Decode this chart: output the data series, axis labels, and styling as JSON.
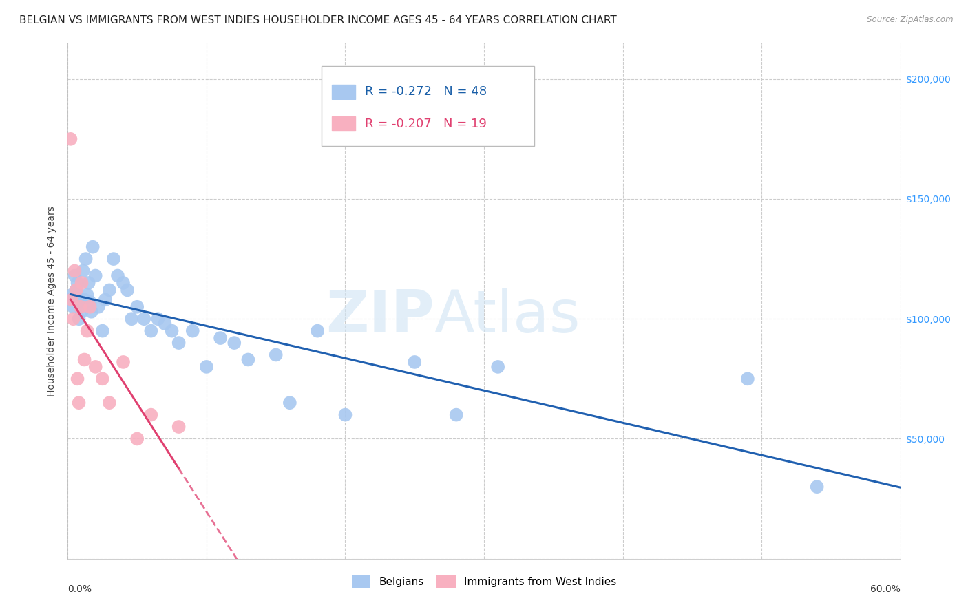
{
  "title": "BELGIAN VS IMMIGRANTS FROM WEST INDIES HOUSEHOLDER INCOME AGES 45 - 64 YEARS CORRELATION CHART",
  "source": "Source: ZipAtlas.com",
  "ylabel": "Householder Income Ages 45 - 64 years",
  "yticks": [
    0,
    50000,
    100000,
    150000,
    200000
  ],
  "ytick_labels": [
    "",
    "$50,000",
    "$100,000",
    "$150,000",
    "$200,000"
  ],
  "xlim": [
    0.0,
    0.6
  ],
  "ylim": [
    0,
    215000
  ],
  "watermark": "ZIPAtlas",
  "belgians_x": [
    0.002,
    0.003,
    0.004,
    0.005,
    0.006,
    0.007,
    0.008,
    0.009,
    0.01,
    0.011,
    0.012,
    0.013,
    0.014,
    0.015,
    0.016,
    0.017,
    0.018,
    0.02,
    0.022,
    0.025,
    0.027,
    0.03,
    0.033,
    0.036,
    0.04,
    0.043,
    0.046,
    0.05,
    0.055,
    0.06,
    0.065,
    0.07,
    0.075,
    0.08,
    0.09,
    0.1,
    0.11,
    0.12,
    0.13,
    0.15,
    0.16,
    0.18,
    0.2,
    0.25,
    0.28,
    0.31,
    0.49,
    0.54
  ],
  "belgians_y": [
    108000,
    110000,
    105000,
    118000,
    112000,
    115000,
    100000,
    107000,
    103000,
    120000,
    108000,
    125000,
    110000,
    115000,
    107000,
    103000,
    130000,
    118000,
    105000,
    95000,
    108000,
    112000,
    125000,
    118000,
    115000,
    112000,
    100000,
    105000,
    100000,
    95000,
    100000,
    98000,
    95000,
    90000,
    95000,
    80000,
    92000,
    90000,
    83000,
    85000,
    65000,
    95000,
    60000,
    82000,
    60000,
    80000,
    75000,
    30000
  ],
  "west_indies_x": [
    0.002,
    0.003,
    0.004,
    0.005,
    0.006,
    0.007,
    0.008,
    0.009,
    0.01,
    0.012,
    0.014,
    0.016,
    0.02,
    0.025,
    0.03,
    0.04,
    0.05,
    0.06,
    0.08
  ],
  "west_indies_y": [
    175000,
    108000,
    100000,
    120000,
    112000,
    75000,
    65000,
    105000,
    115000,
    83000,
    95000,
    105000,
    80000,
    75000,
    65000,
    82000,
    50000,
    60000,
    55000
  ],
  "belgians_color": "#a8c8f0",
  "belgians_line_color": "#2060b0",
  "west_indies_color": "#f8b0c0",
  "west_indies_line_color": "#e04070",
  "belgians_R": -0.272,
  "belgians_N": 48,
  "west_indies_R": -0.207,
  "west_indies_N": 19,
  "legend_label_belgians": "Belgians",
  "legend_label_west_indies": "Immigrants from West Indies",
  "grid_color": "#cccccc",
  "background_color": "#ffffff",
  "title_fontsize": 11,
  "axis_label_fontsize": 10,
  "tick_fontsize": 10,
  "legend_fontsize": 13
}
